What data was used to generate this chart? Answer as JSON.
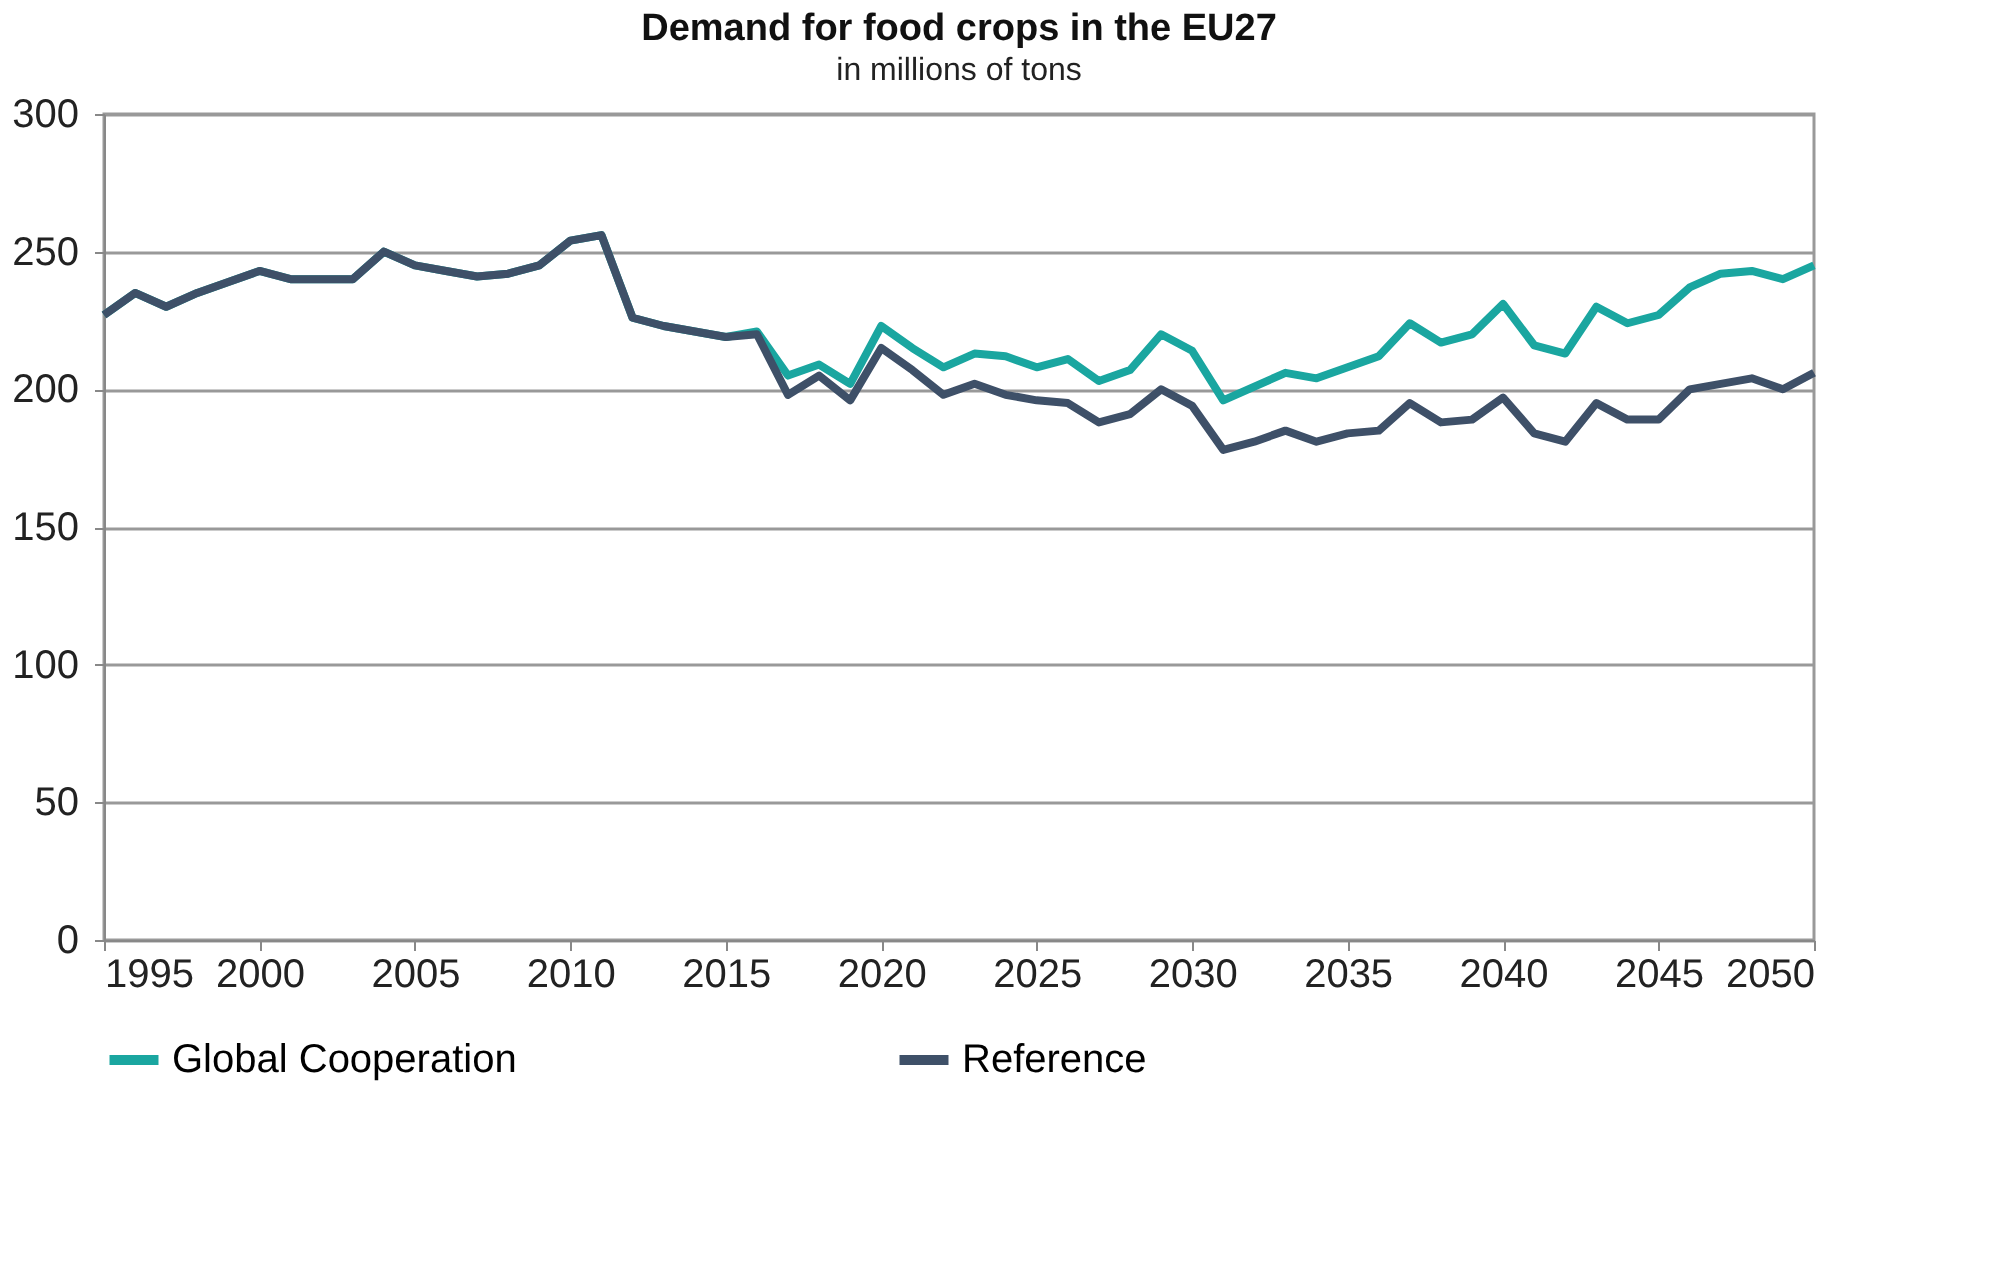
{
  "chart_data": {
    "type": "line",
    "title": "Demand for food crops in the EU27",
    "subtitle": "in millions of tons",
    "x": [
      1995,
      1996,
      1997,
      1998,
      1999,
      2000,
      2001,
      2002,
      2003,
      2004,
      2005,
      2006,
      2007,
      2008,
      2009,
      2010,
      2011,
      2012,
      2013,
      2014,
      2015,
      2016,
      2017,
      2018,
      2019,
      2020,
      2021,
      2022,
      2023,
      2024,
      2025,
      2026,
      2027,
      2028,
      2029,
      2030,
      2031,
      2032,
      2033,
      2034,
      2035,
      2036,
      2037,
      2038,
      2039,
      2040,
      2041,
      2042,
      2043,
      2044,
      2045,
      2046,
      2047,
      2048,
      2049,
      2050
    ],
    "series": [
      {
        "name": "Global Cooperation",
        "color": "#1aa6a0",
        "values": [
          227,
          235,
          230,
          235,
          239,
          243,
          240,
          240,
          240,
          250,
          245,
          243,
          241,
          242,
          245,
          254,
          256,
          226,
          223,
          221,
          219,
          221,
          205,
          209,
          202,
          223,
          215,
          208,
          213,
          212,
          208,
          211,
          203,
          207,
          220,
          214,
          196,
          201,
          206,
          204,
          208,
          212,
          224,
          217,
          220,
          231,
          216,
          213,
          230,
          224,
          227,
          237,
          242,
          243,
          240,
          245
        ]
      },
      {
        "name": "Reference",
        "color": "#3e5068",
        "values": [
          227,
          235,
          230,
          235,
          239,
          243,
          240,
          240,
          240,
          250,
          245,
          243,
          241,
          242,
          245,
          254,
          256,
          226,
          223,
          221,
          219,
          220,
          198,
          205,
          196,
          215,
          207,
          198,
          202,
          198,
          196,
          195,
          188,
          191,
          200,
          194,
          178,
          181,
          185,
          181,
          184,
          185,
          195,
          188,
          189,
          197,
          184,
          181,
          195,
          189,
          189,
          200,
          202,
          204,
          200,
          206
        ]
      }
    ],
    "xlim": [
      1995,
      2050
    ],
    "xticks": [
      1995,
      2000,
      2005,
      2010,
      2015,
      2020,
      2025,
      2030,
      2035,
      2040,
      2045,
      2050
    ],
    "ylim": [
      0,
      300
    ],
    "yticks": [
      0,
      50,
      100,
      150,
      200,
      250,
      300
    ],
    "grid": "y",
    "legend": "bottom",
    "marker": "none",
    "line_style": "solid"
  }
}
